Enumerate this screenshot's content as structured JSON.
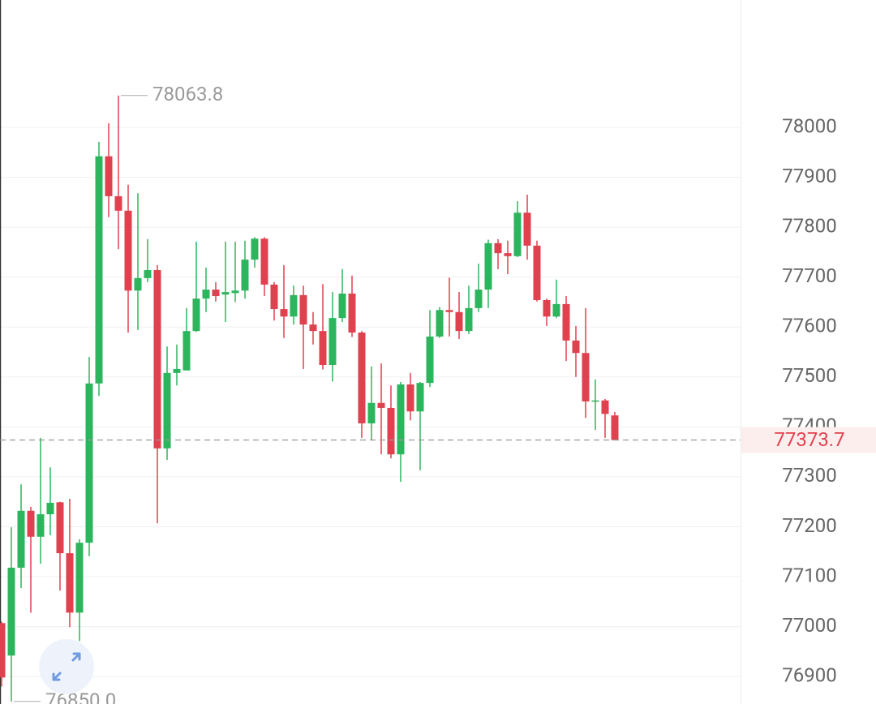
{
  "chart_data": {
    "type": "candlestick",
    "up_color": "#2db55d",
    "down_color": "#e0414f",
    "grid": true,
    "ylim": [
      76845,
      78255
    ],
    "yticks": [
      76900,
      77000,
      77100,
      77200,
      77300,
      77400,
      77500,
      77600,
      77700,
      77800,
      77900,
      78000
    ],
    "open": [
      77007,
      76942,
      77118,
      77232,
      77180,
      77225,
      77249,
      77147,
      77028,
      77168,
      77487,
      77942,
      77862,
      77833,
      77673,
      77698,
      77714,
      77357,
      77508,
      77513,
      77592,
      77657,
      77675,
      77665,
      77668,
      77673,
      77735,
      77777,
      77685,
      77636,
      77621,
      77664,
      77605,
      77592,
      77524,
      77618,
      77667,
      77589,
      77407,
      77448,
      77438,
      77345,
      77485,
      77431,
      77488,
      77581,
      77634,
      77630,
      77592,
      77638,
      77675,
      77768,
      77748,
      77742,
      77829,
      77763,
      77654,
      77621,
      77646,
      77573,
      77548,
      77451,
      77453,
      77423
    ],
    "high": [
      77010,
      77199,
      77285,
      77240,
      77378,
      77319,
      77250,
      77256,
      77175,
      77540,
      77971,
      78008,
      78063.8,
      77885,
      77868,
      77776,
      77724,
      77561,
      77565,
      77638,
      77771,
      77719,
      77690,
      77771,
      77771,
      77773,
      77780,
      77780,
      77690,
      77724,
      77683,
      77683,
      77630,
      77686,
      77670,
      77716,
      77703,
      77592,
      77521,
      77527,
      77483,
      77490,
      77508,
      77490,
      77634,
      77640,
      77699,
      77670,
      77683,
      77727,
      77775,
      77776,
      77773,
      77852,
      77865,
      77773,
      77657,
      77695,
      77662,
      77602,
      77638,
      77495,
      77456,
      77430
    ],
    "low": [
      76880,
      76850,
      77077,
      77028,
      77126,
      77183,
      77072,
      76999,
      76971,
      77141,
      77462,
      77820,
      77756,
      77589,
      77594,
      77690,
      77207,
      77334,
      77483,
      77516,
      77590,
      77630,
      77651,
      77610,
      77650,
      77657,
      77719,
      77662,
      77613,
      77578,
      77605,
      77516,
      77565,
      77515,
      77491,
      77610,
      77580,
      77378,
      77373,
      77345,
      77337,
      77290,
      77413,
      77313,
      77480,
      77578,
      77581,
      77576,
      77586,
      77630,
      77638,
      77716,
      77706,
      77740,
      77735,
      77651,
      77602,
      77618,
      77532,
      77500,
      77418,
      77394,
      77378,
      77373.7
    ],
    "close": [
      76898,
      77118,
      77232,
      77180,
      77225,
      77248,
      77147,
      77028,
      77168,
      77487,
      77942,
      77862,
      77833,
      77673,
      77698,
      77714,
      77357,
      77508,
      77516,
      77592,
      77657,
      77675,
      77662,
      77670,
      77673,
      77735,
      77777,
      77685,
      77636,
      77621,
      77664,
      77605,
      77592,
      77524,
      77618,
      77667,
      77589,
      77407,
      77448,
      77438,
      77345,
      77485,
      77431,
      77488,
      77581,
      77634,
      77630,
      77592,
      77638,
      77675,
      77768,
      77748,
      77742,
      77829,
      77763,
      77654,
      77621,
      77646,
      77573,
      77548,
      77451,
      77453,
      77426,
      77373.7
    ],
    "high_marker": 78063.8,
    "low_marker": {
      "value": 76850,
      "label": "76850.0"
    },
    "last_price": 77373.7
  }
}
